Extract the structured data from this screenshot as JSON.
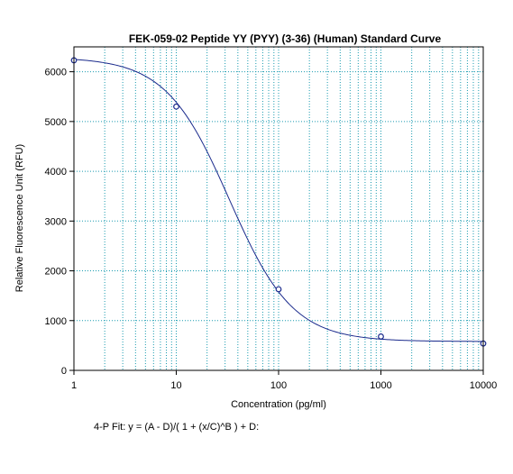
{
  "chart_data": {
    "type": "scatter",
    "title": "FEK-059-02 Peptide YY (PYY) (3-36) (Human) Standard Curve",
    "xlabel": "Concentration (pg/ml)",
    "ylabel": "Relative Fluorescence Unit (RFU)",
    "x_scale": "log",
    "xlim": [
      1,
      10000
    ],
    "ylim": [
      0,
      6500
    ],
    "x_ticks": [
      1,
      10,
      100,
      1000,
      10000
    ],
    "x_tick_labels": [
      "1",
      "10",
      "100",
      "1000",
      "10000"
    ],
    "y_ticks": [
      0,
      1000,
      2000,
      3000,
      4000,
      5000,
      6000
    ],
    "y_tick_labels": [
      "0",
      "1000",
      "2000",
      "3000",
      "4000",
      "5000",
      "6000"
    ],
    "grid": true,
    "series": [
      {
        "type": "scatter",
        "x": [
          1,
          10,
          100,
          1000,
          10000
        ],
        "y": [
          6230,
          5300,
          1630,
          680,
          540
        ]
      },
      {
        "type": "line",
        "fit": "4-P",
        "params": {
          "A": 6290,
          "B": 1.4,
          "C": 33,
          "D": 580
        }
      }
    ],
    "annotation": "4-P Fit: y = (A - D)/( 1 + (x/C)^B ) + D:"
  },
  "colors": {
    "grid": "#1a9bb0",
    "curve": "#1a2a8c",
    "points": "#1a2a8c",
    "axis": "#000000"
  }
}
